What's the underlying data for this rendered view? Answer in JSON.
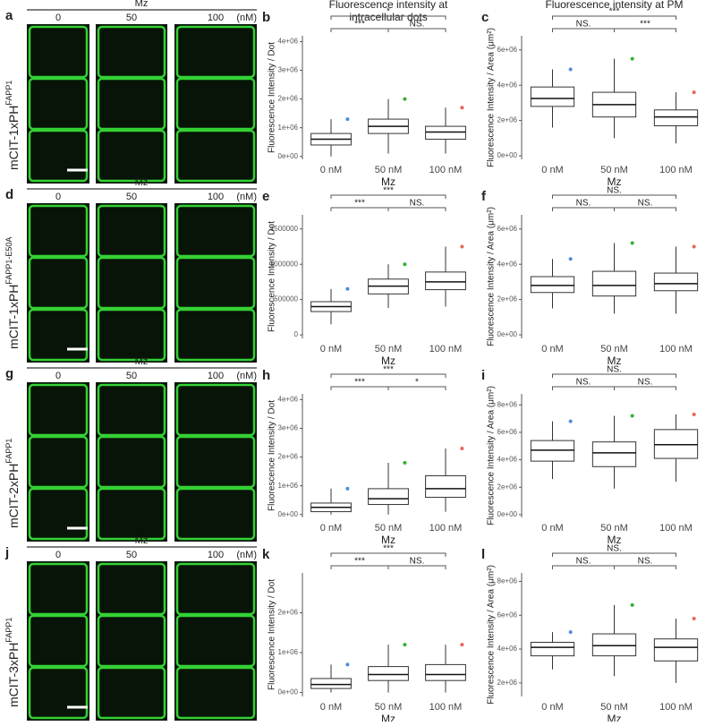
{
  "image_rows": [
    {
      "letter": "a",
      "treatment": "Mz",
      "doses": [
        "0",
        "50",
        "100"
      ],
      "unit": "(nM)",
      "construct": "mCIT-1xPH",
      "superscript": "FAPP1"
    },
    {
      "letter": "d",
      "treatment": "Mz",
      "doses": [
        "0",
        "50",
        "100"
      ],
      "unit": "(nM)",
      "construct": "mCIT-1xPH",
      "superscript": "FAPP1-E50A"
    },
    {
      "letter": "g",
      "treatment": "Mz",
      "doses": [
        "0",
        "50",
        "100"
      ],
      "unit": "(nM)",
      "construct": "mCIT-2xPH",
      "superscript": "FAPP1"
    },
    {
      "letter": "j",
      "treatment": "Mz",
      "doses": [
        "0",
        "50",
        "100"
      ],
      "unit": "(nM)",
      "construct": "mCIT-3xPH",
      "superscript": "FAPP1"
    }
  ],
  "chart_data": [
    {
      "type": "box",
      "letter": "b",
      "title_lines": [
        "Fluorescence intensity at",
        "intracellular dots"
      ],
      "x_label": "Mz",
      "y_label": "Fluorescence Intensity / Dot",
      "categories": [
        "0 nM",
        "50 nM",
        "100 nM"
      ],
      "colors": [
        "#4f8be0",
        "#2fb32f",
        "#e8645a"
      ],
      "ylim": [
        -100000,
        4200000
      ],
      "yticks": [
        {
          "value": 0,
          "label": "0e+00"
        },
        {
          "value": 1000000,
          "label": "1e+06"
        },
        {
          "value": 2000000,
          "label": "2e+06"
        },
        {
          "value": 3000000,
          "label": "3e+06"
        },
        {
          "value": 4000000,
          "label": "4e+06"
        }
      ],
      "boxes": [
        {
          "q1": 400000,
          "median": 600000,
          "q3": 800000,
          "whisker_low": 0,
          "whisker_high": 1300000
        },
        {
          "q1": 800000,
          "median": 1050000,
          "q3": 1300000,
          "whisker_low": 100000,
          "whisker_high": 2000000
        },
        {
          "q1": 600000,
          "median": 850000,
          "q3": 1050000,
          "whisker_low": 100000,
          "whisker_high": 1700000
        }
      ],
      "brackets": [
        "*",
        "***",
        "NS."
      ]
    },
    {
      "type": "box",
      "letter": "c",
      "title_lines": [
        "Fluorescence intensity at PM"
      ],
      "x_label": "Mz",
      "y_label": "Fluorescence Intensity / Area (μm²)",
      "categories": [
        "0 nM",
        "50 nM",
        "100 nM"
      ],
      "colors": [
        "#4f8be0",
        "#2fb32f",
        "#e8645a"
      ],
      "ylim": [
        -200000,
        6800000
      ],
      "yticks": [
        {
          "value": 0,
          "label": "0e+00"
        },
        {
          "value": 2000000,
          "label": "2e+06"
        },
        {
          "value": 4000000,
          "label": "4e+06"
        },
        {
          "value": 6000000,
          "label": "6e+06"
        }
      ],
      "boxes": [
        {
          "q1": 2800000,
          "median": 3250000,
          "q3": 3900000,
          "whisker_low": 1600000,
          "whisker_high": 4900000
        },
        {
          "q1": 2200000,
          "median": 2900000,
          "q3": 3600000,
          "whisker_low": 1000000,
          "whisker_high": 5500000
        },
        {
          "q1": 1700000,
          "median": 2200000,
          "q3": 2600000,
          "whisker_low": 700000,
          "whisker_high": 3600000
        }
      ],
      "brackets": [
        "***",
        "NS.",
        "***"
      ]
    },
    {
      "type": "box",
      "letter": "e",
      "title_lines": [],
      "x_label": "Mz",
      "y_label": "Fluorescence Intensity / Dot",
      "categories": [
        "0 nM",
        "50 nM",
        "100 nM"
      ],
      "colors": [
        "#4f8be0",
        "#2fb32f",
        "#e8645a"
      ],
      "ylim": [
        -50000,
        1700000
      ],
      "yticks": [
        0,
        500000,
        1000000,
        1500000
      ],
      "boxes": [
        {
          "q1": 330000,
          "median": 400000,
          "q3": 470000,
          "whisker_low": 150000,
          "whisker_high": 650000
        },
        {
          "q1": 580000,
          "median": 690000,
          "q3": 790000,
          "whisker_low": 380000,
          "whisker_high": 1000000
        },
        {
          "q1": 640000,
          "median": 750000,
          "q3": 890000,
          "whisker_low": 400000,
          "whisker_high": 1250000
        }
      ],
      "brackets": [
        "***",
        "***",
        "NS."
      ]
    },
    {
      "type": "box",
      "letter": "f",
      "title_lines": [],
      "x_label": "Mz",
      "y_label": "Fluorescence Intensity / Area (μm²)",
      "categories": [
        "0 nM",
        "50 nM",
        "100 nM"
      ],
      "colors": [
        "#4f8be0",
        "#2fb32f",
        "#e8645a"
      ],
      "ylim": [
        -200000,
        6800000
      ],
      "yticks": [
        {
          "value": 0,
          "label": "0e+00"
        },
        {
          "value": 2000000,
          "label": "2e+06"
        },
        {
          "value": 4000000,
          "label": "4e+06"
        },
        {
          "value": 6000000,
          "label": "6e+06"
        }
      ],
      "boxes": [
        {
          "q1": 2400000,
          "median": 2800000,
          "q3": 3300000,
          "whisker_low": 1500000,
          "whisker_high": 4300000
        },
        {
          "q1": 2200000,
          "median": 2800000,
          "q3": 3600000,
          "whisker_low": 1200000,
          "whisker_high": 5200000
        },
        {
          "q1": 2500000,
          "median": 2900000,
          "q3": 3500000,
          "whisker_low": 1200000,
          "whisker_high": 5000000
        }
      ],
      "brackets": [
        "NS.",
        "NS.",
        "NS."
      ]
    },
    {
      "type": "box",
      "letter": "h",
      "title_lines": [],
      "x_label": "Mz",
      "y_label": "Fluorescence Intensity / Dot",
      "categories": [
        "0 nM",
        "50 nM",
        "100 nM"
      ],
      "colors": [
        "#4f8be0",
        "#2fb32f",
        "#e8645a"
      ],
      "ylim": [
        -100000,
        4200000
      ],
      "yticks": [
        {
          "value": 0,
          "label": "0e+00"
        },
        {
          "value": 1000000,
          "label": "1e+06"
        },
        {
          "value": 2000000,
          "label": "2e+06"
        },
        {
          "value": 3000000,
          "label": "3e+06"
        },
        {
          "value": 4000000,
          "label": "4e+06"
        }
      ],
      "boxes": [
        {
          "q1": 100000,
          "median": 250000,
          "q3": 400000,
          "whisker_low": 0,
          "whisker_high": 900000
        },
        {
          "q1": 350000,
          "median": 550000,
          "q3": 900000,
          "whisker_low": 0,
          "whisker_high": 1800000
        },
        {
          "q1": 600000,
          "median": 900000,
          "q3": 1350000,
          "whisker_low": 100000,
          "whisker_high": 2300000
        }
      ],
      "brackets": [
        "***",
        "***",
        "*"
      ]
    },
    {
      "type": "box",
      "letter": "i",
      "title_lines": [],
      "x_label": "Mz",
      "y_label": "Fluorescence Intensity / Area (μm²)",
      "categories": [
        "0 nM",
        "50 nM",
        "100 nM"
      ],
      "colors": [
        "#4f8be0",
        "#2fb32f",
        "#e8645a"
      ],
      "ylim": [
        -200000,
        8800000
      ],
      "yticks": [
        {
          "value": 0,
          "label": "0e+00"
        },
        {
          "value": 2000000,
          "label": "2e+06"
        },
        {
          "value": 4000000,
          "label": "4e+06"
        },
        {
          "value": 6000000,
          "label": "6e+06"
        },
        {
          "value": 8000000,
          "label": "8e+06"
        }
      ],
      "boxes": [
        {
          "q1": 3900000,
          "median": 4700000,
          "q3": 5400000,
          "whisker_low": 2600000,
          "whisker_high": 6800000
        },
        {
          "q1": 3500000,
          "median": 4500000,
          "q3": 5300000,
          "whisker_low": 1900000,
          "whisker_high": 7200000
        },
        {
          "q1": 4100000,
          "median": 5100000,
          "q3": 6200000,
          "whisker_low": 2400000,
          "whisker_high": 7300000
        }
      ],
      "brackets": [
        "NS.",
        "NS.",
        "NS."
      ]
    },
    {
      "type": "box",
      "letter": "k",
      "title_lines": [],
      "x_label": "Mz",
      "y_label": "Fluorescence Intensity / Dot",
      "categories": [
        "0 nM",
        "50 nM",
        "100 nM"
      ],
      "colors": [
        "#4f8be0",
        "#2fb32f",
        "#e8645a"
      ],
      "ylim": [
        -100000,
        3000000
      ],
      "yticks": [
        {
          "value": 0,
          "label": "0e+00"
        },
        {
          "value": 1000000,
          "label": "1e+06"
        },
        {
          "value": 2000000,
          "label": "2e+06"
        }
      ],
      "boxes": [
        {
          "q1": 100000,
          "median": 200000,
          "q3": 350000,
          "whisker_low": 0,
          "whisker_high": 700000
        },
        {
          "q1": 300000,
          "median": 450000,
          "q3": 650000,
          "whisker_low": 0,
          "whisker_high": 1200000
        },
        {
          "q1": 300000,
          "median": 450000,
          "q3": 700000,
          "whisker_low": 0,
          "whisker_high": 1200000
        }
      ],
      "brackets": [
        "***",
        "***",
        "NS."
      ]
    },
    {
      "type": "box",
      "letter": "l",
      "title_lines": [],
      "x_label": "Mz",
      "y_label": "Fluorescence Intensity / Area (μm²)",
      "categories": [
        "0 nM",
        "50 nM",
        "100 nM"
      ],
      "colors": [
        "#4f8be0",
        "#2fb32f",
        "#e8645a"
      ],
      "ylim": [
        1200000,
        8500000
      ],
      "yticks": [
        {
          "value": 2000000,
          "label": "2e+06"
        },
        {
          "value": 4000000,
          "label": "4e+06"
        },
        {
          "value": 6000000,
          "label": "6e+06"
        },
        {
          "value": 8000000,
          "label": "8e+06"
        }
      ],
      "boxes": [
        {
          "q1": 3600000,
          "median": 4100000,
          "q3": 4400000,
          "whisker_low": 2800000,
          "whisker_high": 5000000
        },
        {
          "q1": 3600000,
          "median": 4200000,
          "q3": 4900000,
          "whisker_low": 2400000,
          "whisker_high": 6600000
        },
        {
          "q1": 3300000,
          "median": 4100000,
          "q3": 4600000,
          "whisker_low": 2000000,
          "whisker_high": 5800000
        }
      ],
      "brackets": [
        "NS.",
        "NS.",
        "NS."
      ]
    }
  ]
}
